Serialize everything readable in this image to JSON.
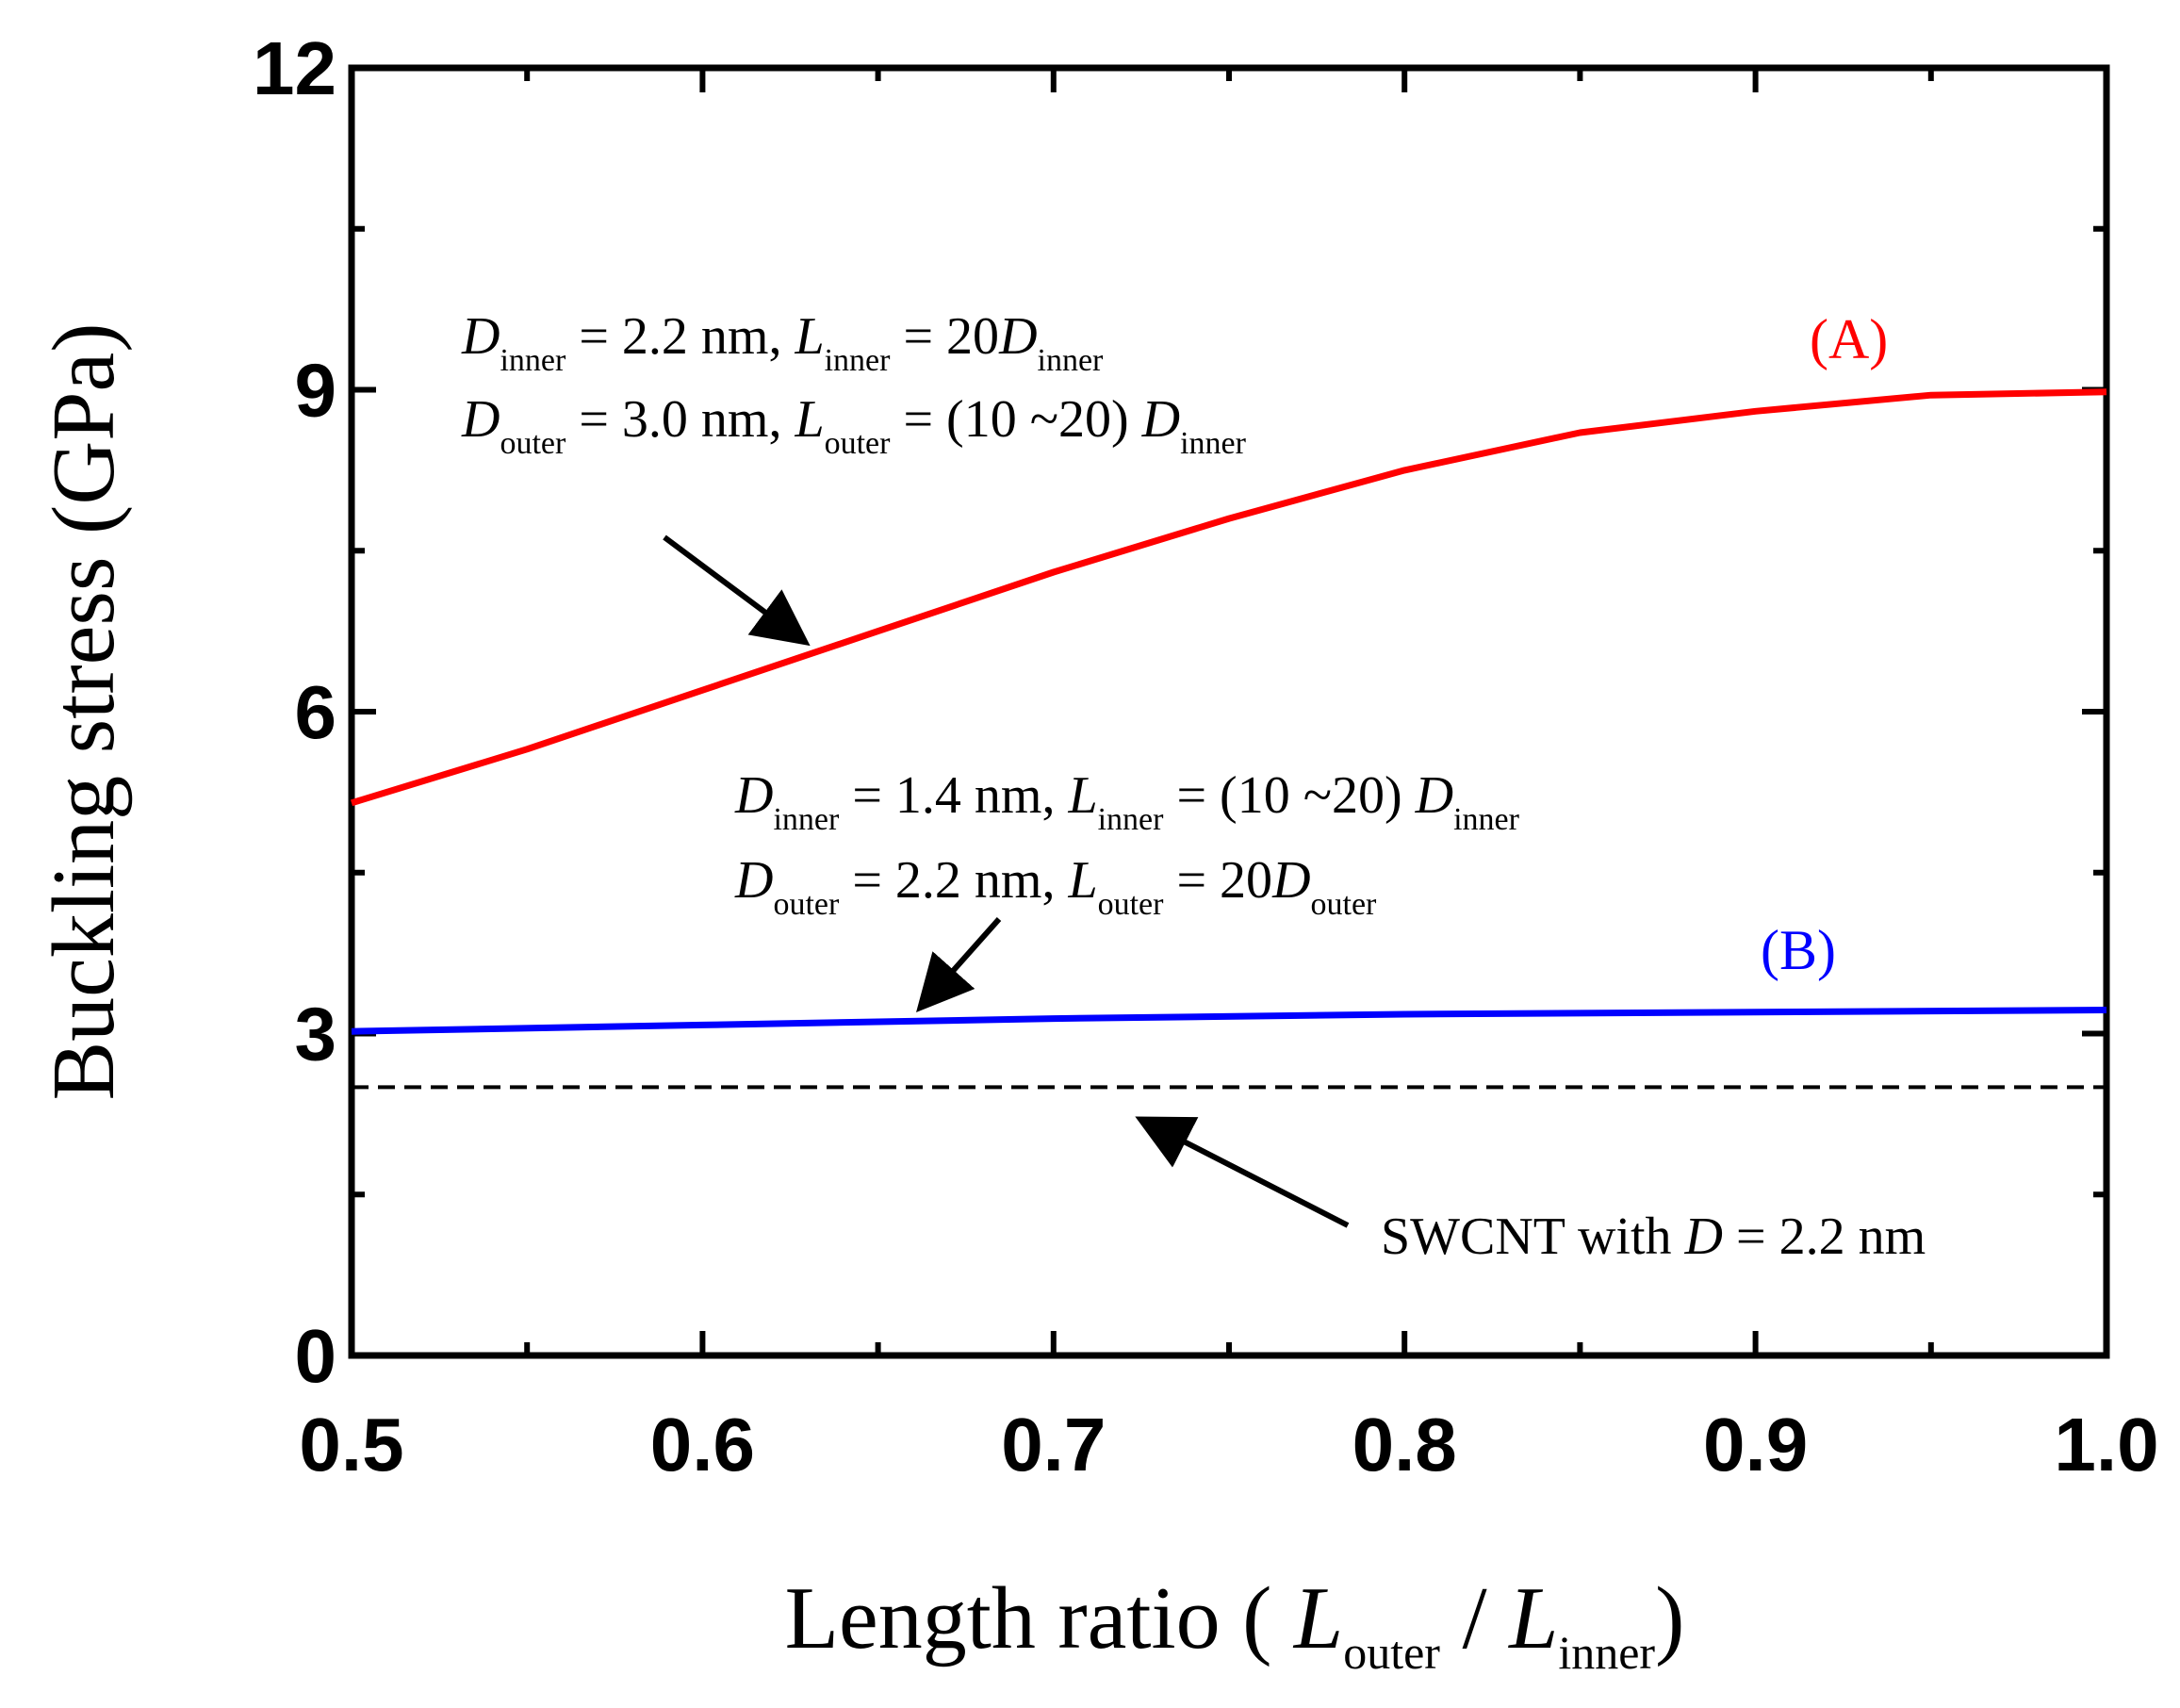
{
  "chart_data": {
    "type": "line",
    "xlabel": {
      "main": "Length ratio (",
      "var1": "L",
      "sub1": "outer",
      "sep": "/",
      "var2": "L",
      "sub2": "inner",
      "close": ")"
    },
    "ylabel": "Buckling stress (GPa)",
    "xlim": [
      0.5,
      1.0
    ],
    "ylim": [
      0,
      12
    ],
    "x_ticks": [
      0.5,
      0.6,
      0.7,
      0.8,
      0.9,
      1.0
    ],
    "x_tick_labels": [
      "0.5",
      "0.6",
      "0.7",
      "0.8",
      "0.9",
      "1.0"
    ],
    "y_ticks": [
      0,
      3,
      6,
      9,
      12
    ],
    "y_tick_labels": [
      "0",
      "3",
      "6",
      "9",
      "12"
    ],
    "series": [
      {
        "name": "(A)",
        "color": "#ff0000",
        "x": [
          0.5,
          0.55,
          0.6,
          0.65,
          0.7,
          0.75,
          0.8,
          0.85,
          0.9,
          0.95,
          1.0
        ],
        "y": [
          5.15,
          5.65,
          6.2,
          6.75,
          7.3,
          7.8,
          8.25,
          8.6,
          8.8,
          8.95,
          8.98
        ]
      },
      {
        "name": "(B)",
        "color": "#0000ff",
        "x": [
          0.5,
          0.6,
          0.7,
          0.8,
          0.9,
          1.0
        ],
        "y": [
          3.02,
          3.08,
          3.14,
          3.18,
          3.2,
          3.22
        ]
      },
      {
        "name": "SWCNT with D = 2.2 nm",
        "color": "#000000",
        "style": "dashed",
        "x": [
          0.5,
          1.0
        ],
        "y": [
          2.5,
          2.5
        ]
      }
    ],
    "annotations": {
      "A": {
        "line1": {
          "v1": "D",
          "s1": "inner",
          "t1": " = 2.2 nm, ",
          "v2": "L",
          "s2": "inner",
          "t2": " = 20",
          "v3": "D",
          "s3": "inner"
        },
        "line2": {
          "v1": "D",
          "s1": "outer",
          "t1": " = 3.0 nm, ",
          "v2": "L",
          "s2": "outer",
          "t2": " = (10 ~20) ",
          "v3": "D",
          "s3": "inner"
        }
      },
      "B": {
        "line1": {
          "v1": "D",
          "s1": "inner",
          "t1": " = 1.4 nm, ",
          "v2": "L",
          "s2": "inner",
          "t2": " = (10 ~20) ",
          "v3": "D",
          "s3": "inner"
        },
        "line2": {
          "v1": "D",
          "s1": "outer",
          "t1": " = 2.2 nm, ",
          "v2": "L",
          "s2": "outer",
          "t2": " = 20",
          "v3": "D",
          "s3": "outer"
        }
      },
      "swcnt": {
        "t1": "SWCNT with ",
        "v1": "D",
        "t2": " = 2.2 nm"
      }
    }
  }
}
